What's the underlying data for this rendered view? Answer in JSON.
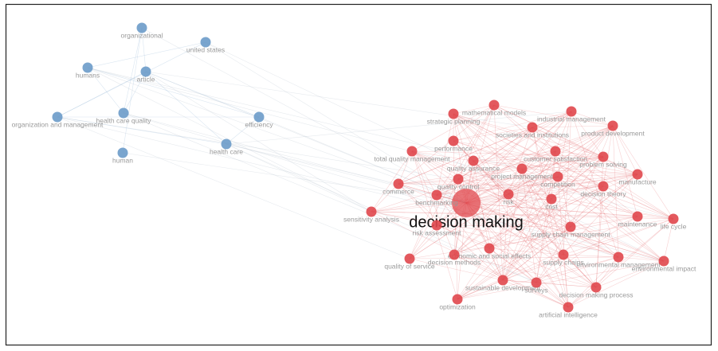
{
  "nodes": [
    {
      "label": "organizational",
      "color": "#6b9bc9"
    },
    {
      "label": "united states",
      "color": "#6b9bc9"
    },
    {
      "label": "humans",
      "color": "#6b9bc9"
    },
    {
      "label": "article",
      "color": "#6b9bc9"
    },
    {
      "label": "health care quality",
      "color": "#6b9bc9"
    },
    {
      "label": "organization and management",
      "color": "#6b9bc9"
    },
    {
      "label": "efficiency",
      "color": "#6b9bc9"
    },
    {
      "label": "human",
      "color": "#6b9bc9"
    },
    {
      "label": "health care",
      "color": "#6b9bc9"
    },
    {
      "label": "decision making",
      "color": "#e0474c"
    },
    {
      "label": "mathematical models",
      "color": "#e0474c"
    },
    {
      "label": "strategic planning",
      "color": "#e0474c"
    },
    {
      "label": "industrial management",
      "color": "#e0474c"
    },
    {
      "label": "societies and institutions",
      "color": "#e0474c"
    },
    {
      "label": "product development",
      "color": "#e0474c"
    },
    {
      "label": "performance",
      "color": "#e0474c"
    },
    {
      "label": "total quality management",
      "color": "#e0474c"
    },
    {
      "label": "customer satisfaction",
      "color": "#e0474c"
    },
    {
      "label": "quality assurance",
      "color": "#e0474c"
    },
    {
      "label": "problem solving",
      "color": "#e0474c"
    },
    {
      "label": "project management",
      "color": "#e0474c"
    },
    {
      "label": "manufacture",
      "color": "#e0474c"
    },
    {
      "label": "commerce",
      "color": "#e0474c"
    },
    {
      "label": "competition",
      "color": "#e0474c"
    },
    {
      "label": "decision theory",
      "color": "#e0474c"
    },
    {
      "label": "quality control",
      "color": "#e0474c"
    },
    {
      "label": "benchmarking",
      "color": "#e0474c"
    },
    {
      "label": "risk",
      "color": "#e0474c"
    },
    {
      "label": "cost",
      "color": "#e0474c"
    },
    {
      "label": "sensitivity analysis",
      "color": "#e0474c"
    },
    {
      "label": "maintenance",
      "color": "#e0474c"
    },
    {
      "label": "life cycle",
      "color": "#e0474c"
    },
    {
      "label": "risk assessment",
      "color": "#e0474c"
    },
    {
      "label": "supply chain management",
      "color": "#e0474c"
    },
    {
      "label": "economic and social effects",
      "color": "#e0474c"
    },
    {
      "label": "quality of service",
      "color": "#e0474c"
    },
    {
      "label": "decision methods",
      "color": "#e0474c"
    },
    {
      "label": "supply chains",
      "color": "#e0474c"
    },
    {
      "label": "environmental management",
      "color": "#e0474c"
    },
    {
      "label": "environmental impact",
      "color": "#e0474c"
    },
    {
      "label": "sustainable development",
      "color": "#e0474c"
    },
    {
      "label": "surveys",
      "color": "#e0474c"
    },
    {
      "label": "decision making process",
      "color": "#e0474c"
    },
    {
      "label": "optimization",
      "color": "#e0474c"
    },
    {
      "label": "artificial intelligence",
      "color": "#e0474c"
    }
  ]
}
